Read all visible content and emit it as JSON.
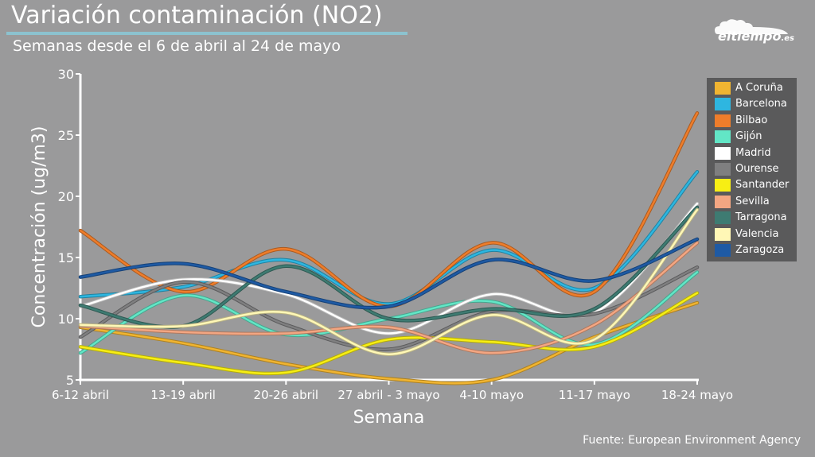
{
  "header": {
    "title": "Variación contaminación (NO2)",
    "subtitle": "Semanas desde el 6 de abril al 24 de mayo"
  },
  "brand": {
    "name": "eltiempo",
    "suffix": ".es"
  },
  "footer": {
    "source": "Fuente: European Environment Agency"
  },
  "chart_data": {
    "type": "line",
    "xlabel": "Semana",
    "ylabel": "Concentración (ug/m3)",
    "categories": [
      "6-12 abril",
      "13-19 abril",
      "20-26 abril",
      "27 abril - 3 mayo",
      "4-10 mayo",
      "11-17 mayo",
      "18-24 mayo"
    ],
    "ylim": [
      5,
      30
    ],
    "yticks": [
      "5",
      "10",
      "15",
      "20",
      "25",
      "30"
    ],
    "grid": false,
    "legend_position": "right",
    "series": [
      {
        "name": "A Coruña",
        "color": "#f0b431",
        "values": [
          9.3,
          8.0,
          6.3,
          5.1,
          5.0,
          8.5,
          11.3
        ]
      },
      {
        "name": "Barcelona",
        "color": "#2eb6e0",
        "values": [
          11.8,
          12.6,
          14.8,
          11.2,
          15.6,
          12.5,
          22.0
        ]
      },
      {
        "name": "Bilbao",
        "color": "#ee7d2b",
        "values": [
          17.2,
          12.2,
          15.7,
          11.0,
          16.2,
          12.2,
          26.8
        ]
      },
      {
        "name": "Gijón",
        "color": "#62e6c6",
        "values": [
          7.2,
          11.9,
          8.7,
          10.0,
          11.4,
          7.9,
          13.8
        ]
      },
      {
        "name": "Madrid",
        "color": "#ffffff",
        "values": [
          11.0,
          13.2,
          12.0,
          8.8,
          12.0,
          10.5,
          19.4
        ]
      },
      {
        "name": "Ourense",
        "color": "#7f7f80",
        "values": [
          8.5,
          13.0,
          9.5,
          7.5,
          10.6,
          10.4,
          14.2
        ]
      },
      {
        "name": "Santander",
        "color": "#f7ee14",
        "values": [
          7.7,
          6.4,
          5.6,
          8.3,
          8.1,
          7.7,
          12.1
        ]
      },
      {
        "name": "Sevilla",
        "color": "#f3a682",
        "values": [
          9.4,
          8.9,
          8.8,
          9.3,
          7.2,
          9.5,
          16.2
        ]
      },
      {
        "name": "Tarragona",
        "color": "#3e7b72",
        "values": [
          11.1,
          9.4,
          14.3,
          10.0,
          10.8,
          10.8,
          19.1
        ]
      },
      {
        "name": "Valencia",
        "color": "#fff7b6",
        "values": [
          9.5,
          9.4,
          10.5,
          7.1,
          10.3,
          8.3,
          18.9
        ]
      },
      {
        "name": "Zaragoza",
        "color": "#1e5aa4",
        "values": [
          13.4,
          14.5,
          12.2,
          11.0,
          14.8,
          13.1,
          16.5
        ]
      }
    ]
  }
}
